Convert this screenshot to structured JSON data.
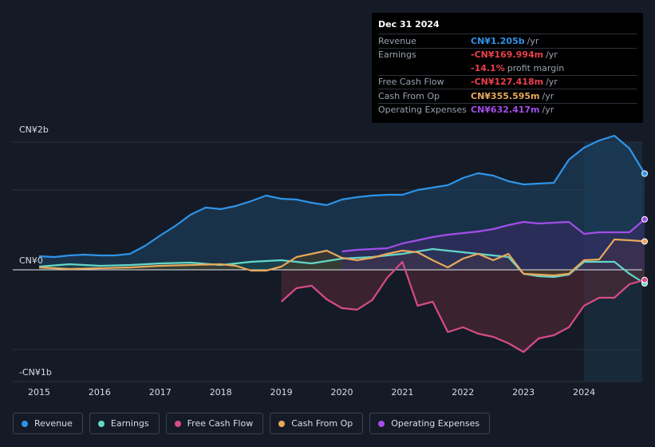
{
  "tooltip": {
    "date": "Dec 31 2024",
    "rows": [
      {
        "label": "Revenue",
        "value": "CN¥1.205b",
        "unit": "/yr",
        "color": "#2e93e8"
      },
      {
        "label": "Earnings",
        "value": "-CN¥169.994m",
        "unit": "/yr",
        "color": "#e8414b"
      },
      {
        "label": "",
        "value": "-14.1%",
        "unit": "profit margin",
        "color": "#e8414b"
      },
      {
        "label": "Free Cash Flow",
        "value": "-CN¥127.418m",
        "unit": "/yr",
        "color": "#e8414b"
      },
      {
        "label": "Cash From Op",
        "value": "CN¥355.595m",
        "unit": "/yr",
        "color": "#e8a85b"
      },
      {
        "label": "Operating Expenses",
        "value": "CN¥632.417m",
        "unit": "/yr",
        "color": "#a24ee8"
      }
    ]
  },
  "legend": [
    {
      "label": "Revenue",
      "color": "#2e93e8"
    },
    {
      "label": "Earnings",
      "color": "#62d7c8"
    },
    {
      "label": "Free Cash Flow",
      "color": "#d64b85"
    },
    {
      "label": "Cash From Op",
      "color": "#e8a85b"
    },
    {
      "label": "Operating Expenses",
      "color": "#a24ee8"
    }
  ],
  "chart_data": {
    "type": "area",
    "title": "",
    "unit": "CN¥b",
    "y_tick_labels": [
      "CN¥2b",
      "CN¥0",
      "-CN¥1b"
    ],
    "y_ticks": [
      1.6,
      0,
      -1
    ],
    "ylim": [
      -1.1,
      1.6
    ],
    "xlim": [
      2014.9,
      2025.0
    ],
    "x_tick_labels": [
      "2015",
      "2016",
      "2017",
      "2018",
      "2019",
      "2020",
      "2021",
      "2022",
      "2023",
      "2024"
    ],
    "x_ticks": [
      2015,
      2016,
      2017,
      2018,
      2019,
      2020,
      2021,
      2022,
      2023,
      2024
    ],
    "forecast_start": 2024.0,
    "series": [
      {
        "name": "Revenue",
        "color": "#2e93e8",
        "fill": "#1d4566",
        "x": [
          2015.0,
          2015.25,
          2015.5,
          2015.75,
          2016.0,
          2016.25,
          2016.5,
          2016.75,
          2017.0,
          2017.25,
          2017.5,
          2017.75,
          2018.0,
          2018.25,
          2018.5,
          2018.75,
          2019.0,
          2019.25,
          2019.5,
          2019.75,
          2020.0,
          2020.25,
          2020.5,
          2020.75,
          2021.0,
          2021.25,
          2021.5,
          2021.75,
          2022.0,
          2022.25,
          2022.5,
          2022.75,
          2023.0,
          2023.25,
          2023.5,
          2023.75,
          2024.0,
          2024.25,
          2024.5,
          2024.75,
          2025.0
        ],
        "values": [
          0.17,
          0.16,
          0.18,
          0.19,
          0.18,
          0.18,
          0.2,
          0.3,
          0.43,
          0.55,
          0.69,
          0.78,
          0.76,
          0.8,
          0.86,
          0.93,
          0.89,
          0.88,
          0.84,
          0.81,
          0.88,
          0.91,
          0.93,
          0.94,
          0.94,
          1.0,
          1.03,
          1.06,
          1.15,
          1.21,
          1.18,
          1.11,
          1.07,
          1.08,
          1.09,
          1.38,
          1.53,
          1.62,
          1.68,
          1.52,
          1.205
        ]
      },
      {
        "name": "Earnings",
        "color": "#62d7c8",
        "fill": "#1a4a4a",
        "x": [
          2015.0,
          2015.5,
          2016.0,
          2016.5,
          2017.0,
          2017.5,
          2018.0,
          2018.5,
          2019.0,
          2019.5,
          2020.0,
          2020.5,
          2021.0,
          2021.5,
          2022.0,
          2022.5,
          2022.75,
          2023.0,
          2023.25,
          2023.5,
          2023.75,
          2024.0,
          2024.5,
          2024.75,
          2025.0
        ],
        "values": [
          0.04,
          0.07,
          0.05,
          0.06,
          0.08,
          0.09,
          0.06,
          0.1,
          0.12,
          0.08,
          0.14,
          0.16,
          0.2,
          0.26,
          0.22,
          0.18,
          0.16,
          -0.05,
          -0.08,
          -0.09,
          -0.06,
          0.1,
          0.1,
          -0.05,
          -0.169994
        ]
      },
      {
        "name": "Free Cash Flow",
        "color": "#d64b85",
        "fill": "#5a2a36",
        "x": [
          2019.0,
          2019.25,
          2019.5,
          2019.75,
          2020.0,
          2020.25,
          2020.5,
          2020.75,
          2021.0,
          2021.25,
          2021.5,
          2021.75,
          2022.0,
          2022.25,
          2022.5,
          2022.75,
          2023.0,
          2023.25,
          2023.5,
          2023.75,
          2024.0,
          2024.25,
          2024.5,
          2024.75,
          2025.0
        ],
        "values": [
          -0.4,
          -0.23,
          -0.2,
          -0.37,
          -0.48,
          -0.5,
          -0.38,
          -0.1,
          0.1,
          -0.45,
          -0.4,
          -0.78,
          -0.72,
          -0.8,
          -0.84,
          -0.92,
          -1.03,
          -0.86,
          -0.82,
          -0.72,
          -0.45,
          -0.35,
          -0.35,
          -0.18,
          -0.127418
        ]
      },
      {
        "name": "Cash From Op",
        "color": "#e8a85b",
        "fill": "#4a3a22",
        "x": [
          2015.0,
          2015.5,
          2016.0,
          2016.5,
          2017.0,
          2017.5,
          2018.0,
          2018.25,
          2018.5,
          2018.75,
          2019.0,
          2019.25,
          2019.5,
          2019.75,
          2020.0,
          2020.25,
          2020.5,
          2020.75,
          2021.0,
          2021.25,
          2021.5,
          2021.75,
          2022.0,
          2022.25,
          2022.5,
          2022.75,
          2023.0,
          2023.25,
          2023.5,
          2023.75,
          2024.0,
          2024.25,
          2024.5,
          2024.75,
          2025.0
        ],
        "values": [
          0.03,
          0.01,
          0.02,
          0.03,
          0.05,
          0.06,
          0.07,
          0.05,
          -0.01,
          -0.01,
          0.04,
          0.16,
          0.2,
          0.24,
          0.15,
          0.12,
          0.15,
          0.2,
          0.24,
          0.22,
          0.12,
          0.03,
          0.14,
          0.2,
          0.12,
          0.2,
          -0.05,
          -0.06,
          -0.07,
          -0.05,
          0.12,
          0.13,
          0.38,
          0.37,
          0.355595
        ]
      },
      {
        "name": "Operating Expenses",
        "color": "#a24ee8",
        "fill": "#3a2a66",
        "x": [
          2020.0,
          2020.25,
          2020.5,
          2020.75,
          2021.0,
          2021.25,
          2021.5,
          2021.75,
          2022.0,
          2022.25,
          2022.5,
          2022.75,
          2023.0,
          2023.25,
          2023.5,
          2023.75,
          2024.0,
          2024.25,
          2024.5,
          2024.75,
          2025.0
        ],
        "values": [
          0.23,
          0.25,
          0.26,
          0.27,
          0.33,
          0.37,
          0.41,
          0.44,
          0.46,
          0.48,
          0.51,
          0.56,
          0.6,
          0.58,
          0.59,
          0.6,
          0.45,
          0.47,
          0.47,
          0.47,
          0.632417
        ]
      }
    ]
  }
}
